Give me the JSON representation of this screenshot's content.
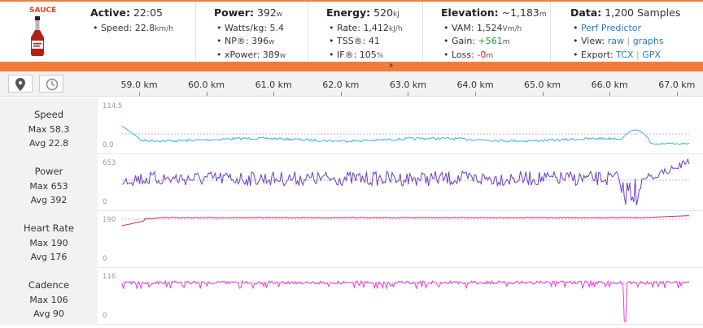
{
  "logo": {
    "text": "SAUCE",
    "icon": "sauce-bottle-icon"
  },
  "active": {
    "label": "Active:",
    "value": "22:05",
    "speed_label": "Speed:",
    "speed_value": "22.8",
    "speed_unit": "km/h"
  },
  "power": {
    "label": "Power:",
    "value": "392",
    "unit": "w",
    "wkg_label": "Watts/kg:",
    "wkg_value": "5.4",
    "np_label": "NP®:",
    "np_value": "396",
    "np_unit": "w",
    "xp_label": "xPower:",
    "xp_value": "389",
    "xp_unit": "w"
  },
  "energy": {
    "label": "Energy:",
    "value": "520",
    "unit": "kJ",
    "rate_label": "Rate:",
    "rate_value": "1,412",
    "rate_unit": "kJ/h",
    "tss_label": "TSS®:",
    "tss_value": "41",
    "if_label": "IF®:",
    "if_value": "105",
    "if_unit": "%"
  },
  "elevation": {
    "label": "Elevation:",
    "value": "~1,183",
    "unit": "m",
    "vam_label": "VAM:",
    "vam_value": "1,524",
    "vam_unit": "Vm/h",
    "gain_label": "Gain:",
    "gain_value": "+561",
    "gain_unit": "m",
    "loss_label": "Loss:",
    "loss_value": "-0",
    "loss_unit": "m"
  },
  "data": {
    "label": "Data:",
    "value": "1,200 Samples",
    "perf_link": "Perf Predictor",
    "view_label": "View:",
    "view_raw": "raw",
    "view_graphs": "graphs",
    "export_label": "Export:",
    "export_tcx": "TCX",
    "export_gpx": "GPX",
    "separator": "|"
  },
  "collapse_icon": "»",
  "toolbar": {
    "map_icon": "map-pin-icon",
    "clock_icon": "clock-icon"
  },
  "axis": {
    "km_labels": [
      "59.0 km",
      "60.0 km",
      "61.0 km",
      "62.0 km",
      "63.0 km",
      "64.0 km",
      "65.0 km",
      "66.0 km",
      "67.0 km"
    ]
  },
  "streams": [
    {
      "title": "Speed",
      "max": "Max 58.3",
      "avg": "Avg 22.8",
      "y_top": "114.5",
      "y_bot": "0.0",
      "color": "#3cb0d8"
    },
    {
      "title": "Power",
      "max": "Max 653",
      "avg": "Avg 392",
      "y_top": "653",
      "y_bot": "0",
      "color": "#6a3fc8"
    },
    {
      "title": "Heart Rate",
      "max": "Max 190",
      "avg": "Avg 176",
      "y_top": "190",
      "y_bot": "0",
      "color": "#d6256b"
    },
    {
      "title": "Cadence",
      "max": "Max 106",
      "avg": "Avg 90",
      "y_top": "116",
      "y_bot": "0",
      "color": "#e83ce0"
    }
  ],
  "colors": {
    "accent": "#f07d3a",
    "link": "#2a7bbf",
    "gain": "#1f9a2f",
    "loss": "#e02020"
  }
}
